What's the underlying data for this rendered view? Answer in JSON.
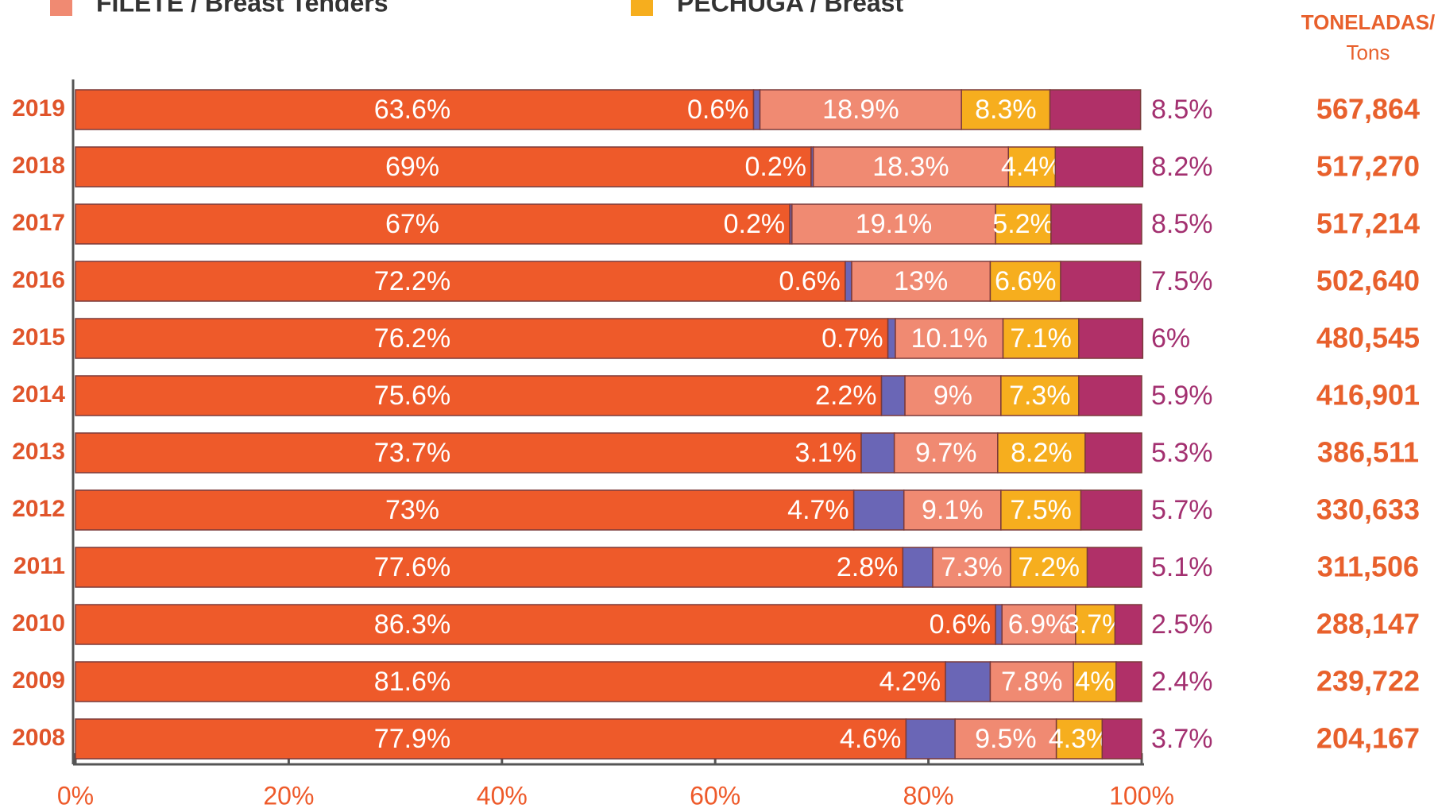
{
  "chart_data": {
    "type": "stacked_bar_horizontal",
    "categories": [
      "2019",
      "2018",
      "2017",
      "2016",
      "2015",
      "2014",
      "2013",
      "2012",
      "2011",
      "2010",
      "2009",
      "2008"
    ],
    "series": [
      {
        "color": "#ee5a2a",
        "values": [
          63.6,
          69,
          67,
          72.2,
          76.2,
          75.6,
          73.7,
          73,
          77.6,
          86.3,
          81.6,
          77.9
        ],
        "value_labels": [
          "63.6%",
          "69%",
          "67%",
          "72.2%",
          "76.2%",
          "75.6%",
          "73.7%",
          "73%",
          "77.6%",
          "86.3%",
          "81.6%",
          "77.9%"
        ]
      },
      {
        "color": "#6a66b6",
        "values": [
          0.6,
          0.2,
          0.2,
          0.6,
          0.7,
          2.2,
          3.1,
          4.7,
          2.8,
          0.6,
          4.2,
          4.6
        ],
        "value_labels": [
          "0.6%",
          "0.2%",
          "0.2%",
          "0.6%",
          "0.7%",
          "2.2%",
          "3.1%",
          "4.7%",
          "2.8%",
          "0.6%",
          "4.2%",
          "4.6%"
        ]
      },
      {
        "name": "FILETE / Breast Tenders",
        "color": "#f08a72",
        "values": [
          18.9,
          18.3,
          19.1,
          13,
          10.1,
          9,
          9.7,
          9.1,
          7.3,
          6.9,
          7.8,
          9.5
        ],
        "value_labels": [
          "18.9%",
          "18.3%",
          "19.1%",
          "13%",
          "10.1%",
          "9%",
          "9.7%",
          "9.1%",
          "7.3%",
          "6.9%",
          "7.8%",
          "9.5%"
        ]
      },
      {
        "name": "PECHUGA / Breast",
        "color": "#f6ae1e",
        "values": [
          8.3,
          4.4,
          5.2,
          6.6,
          7.1,
          7.3,
          8.2,
          7.5,
          7.2,
          3.7,
          4,
          4.3
        ],
        "value_labels": [
          "8.3%",
          "4.4%",
          "5.2%",
          "6.6%",
          "7.1%",
          "7.3%",
          "8.2%",
          "7.5%",
          "7.2%",
          "3.7%",
          "4%",
          "4.3%"
        ]
      },
      {
        "color": "#b03068",
        "values": [
          8.5,
          8.2,
          8.5,
          7.5,
          6,
          5.9,
          5.3,
          5.7,
          5.1,
          2.5,
          2.4,
          3.7
        ],
        "value_labels": [
          "8.5%",
          "8.2%",
          "8.5%",
          "7.5%",
          "6%",
          "5.9%",
          "5.3%",
          "5.7%",
          "5.1%",
          "2.5%",
          "2.4%",
          "3.7%"
        ]
      }
    ],
    "xlim": [
      0,
      100
    ],
    "xticks": [
      {
        "value": 0,
        "label": "0%"
      },
      {
        "value": 20,
        "label": "20%"
      },
      {
        "value": 40,
        "label": "40%"
      },
      {
        "value": 60,
        "label": "60%"
      },
      {
        "value": 80,
        "label": "80%"
      },
      {
        "value": 100,
        "label": "100%"
      }
    ],
    "totals": {
      "title": "TONELADAS/",
      "subtitle": "Tons",
      "values": [
        567864,
        517270,
        517214,
        502640,
        480545,
        416901,
        386511,
        330633,
        311506,
        288147,
        239722,
        204167
      ],
      "value_labels": [
        "567,864",
        "517,270",
        "517,214",
        "502,640",
        "480,545",
        "416,901",
        "386,511",
        "330,633",
        "311,506",
        "288,147",
        "239,722",
        "204,167"
      ]
    }
  }
}
